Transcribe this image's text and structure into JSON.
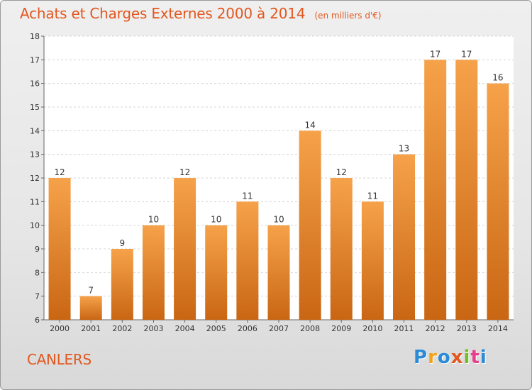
{
  "header": {
    "title": "Achats et Charges Externes 2000 à 2014",
    "unit": "(en milliers d'€)"
  },
  "footer": {
    "city": "CANLERS",
    "logo_text": "Proxiti",
    "logo_colors": [
      "#2b8bd6",
      "#f2a31c",
      "#2b8bd6",
      "#e2571f",
      "#7cb82f",
      "#e83e8c",
      "#2b8bd6"
    ]
  },
  "colors": {
    "bar_light": "#f6a24a",
    "bar_dark": "#c96614",
    "title": "#e2571f"
  },
  "chart_data": {
    "type": "bar",
    "title": "Achats et Charges Externes 2000 à 2014",
    "categories": [
      "2000",
      "2001",
      "2002",
      "2003",
      "2004",
      "2005",
      "2006",
      "2007",
      "2008",
      "2009",
      "2010",
      "2011",
      "2012",
      "2013",
      "2014"
    ],
    "values": [
      12,
      7,
      9,
      10,
      12,
      10,
      11,
      10,
      14,
      12,
      11,
      13,
      17,
      17,
      16
    ],
    "ylim": [
      6,
      18
    ],
    "yticks": [
      6,
      7,
      8,
      9,
      10,
      11,
      12,
      13,
      14,
      15,
      16,
      17,
      18
    ],
    "grid": true,
    "xlabel": "",
    "ylabel": ""
  }
}
